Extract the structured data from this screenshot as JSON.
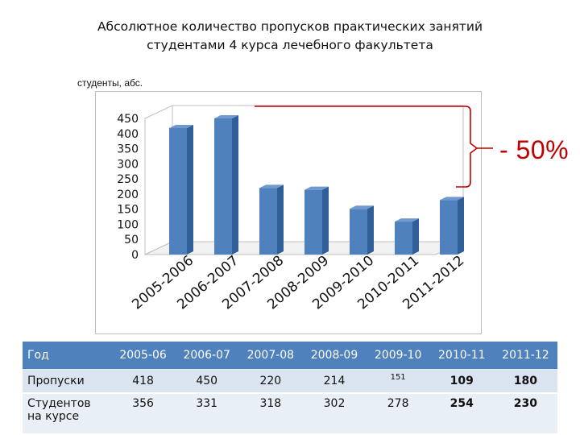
{
  "title_line1": "Абсолютное количество пропусков практических занятий",
  "title_line2": "студентами 4 курса лечебного факультета",
  "units_label": "студенты, абс.",
  "reduction_label": "- 50%",
  "colors": {
    "bar": "#4f81bd",
    "bar_side": "#2f5f96",
    "bar_top": "#6f99cf",
    "accent": "#c00000"
  },
  "chart_data": {
    "type": "bar",
    "categories": [
      "2005-2006",
      "2006-2007",
      "2007-2008",
      "2008-2009",
      "2009-2010",
      "2010-2011",
      "2011-2012"
    ],
    "values": [
      418,
      450,
      220,
      214,
      151,
      109,
      180
    ],
    "ylim": [
      0,
      450
    ],
    "yticks": [
      450,
      400,
      350,
      300,
      250,
      200,
      150,
      100,
      50,
      0
    ],
    "three_d": true,
    "legend": "none"
  },
  "table": {
    "header": [
      "Год",
      "2005-06",
      "2006-07",
      "2007-08",
      "2008-09",
      "2009-10",
      "2010-11",
      "2011-12"
    ],
    "row1": [
      "Пропуски",
      "418",
      "450",
      "220",
      "214",
      "151",
      "109",
      "180"
    ],
    "row2": [
      "Студентов на курсе",
      "356",
      "331",
      "318",
      "302",
      "278",
      "254",
      "230"
    ]
  }
}
